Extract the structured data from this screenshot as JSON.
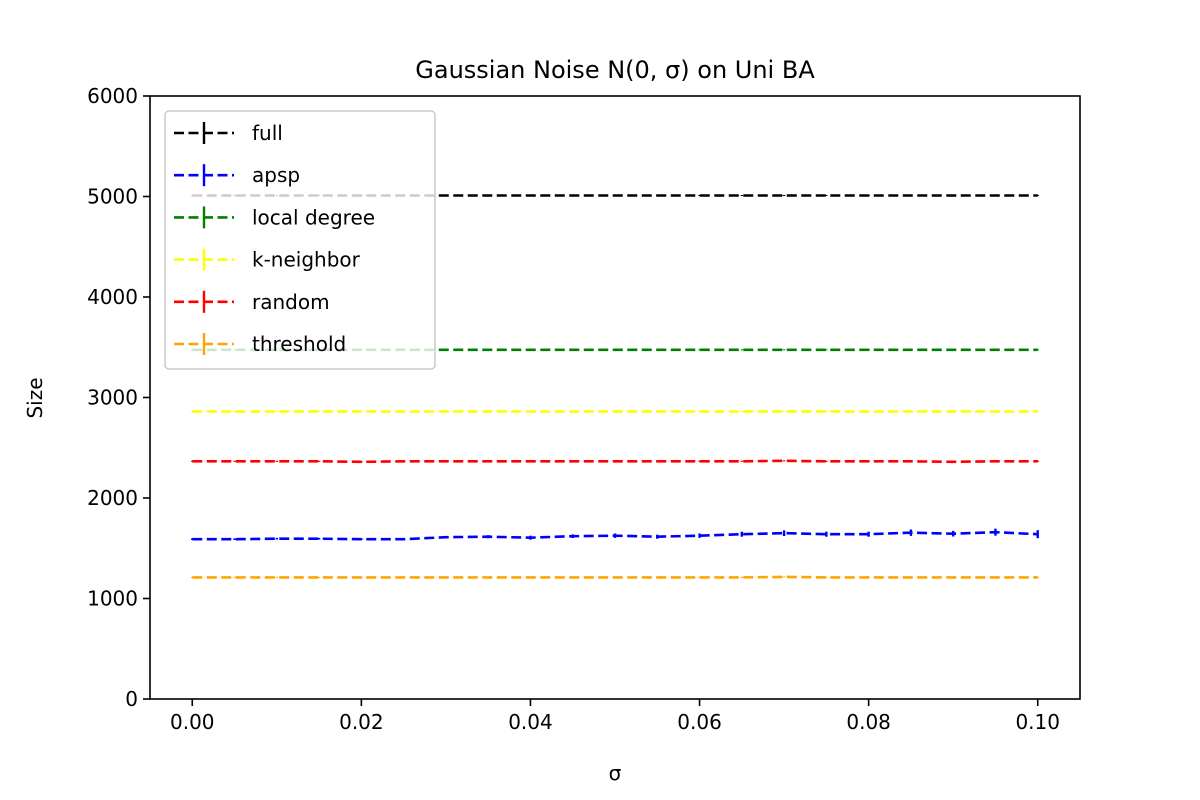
{
  "chart_data": {
    "type": "line",
    "title": "Gaussian Noise N(0, σ) on Uni BA",
    "xlabel": "σ",
    "ylabel": "Size",
    "xlim": [
      -0.005,
      0.105
    ],
    "ylim": [
      0,
      6000
    ],
    "xticks": [
      "0.00",
      "0.02",
      "0.04",
      "0.06",
      "0.08",
      "0.10"
    ],
    "yticks": [
      "0",
      "1000",
      "2000",
      "3000",
      "4000",
      "5000",
      "6000"
    ],
    "grid": false,
    "legend_position": "top-left",
    "x": [
      0.0,
      0.005,
      0.01,
      0.015,
      0.02,
      0.025,
      0.03,
      0.035,
      0.04,
      0.045,
      0.05,
      0.055,
      0.06,
      0.065,
      0.07,
      0.075,
      0.08,
      0.085,
      0.09,
      0.095,
      0.1
    ],
    "series": [
      {
        "name": "full",
        "color": "#000000",
        "values": [
          5010,
          5010,
          5010,
          5010,
          5010,
          5010,
          5010,
          5010,
          5010,
          5010,
          5010,
          5010,
          5010,
          5010,
          5010,
          5010,
          5010,
          5010,
          5010,
          5010,
          5010
        ],
        "errors": [
          5,
          5,
          5,
          5,
          5,
          5,
          5,
          5,
          5,
          5,
          5,
          5,
          5,
          5,
          5,
          5,
          5,
          5,
          5,
          5,
          5
        ]
      },
      {
        "name": "apsp",
        "color": "#0000ff",
        "values": [
          1590,
          1590,
          1595,
          1595,
          1590,
          1590,
          1610,
          1615,
          1605,
          1620,
          1625,
          1615,
          1625,
          1640,
          1650,
          1640,
          1640,
          1655,
          1645,
          1660,
          1640
        ],
        "errors": [
          8,
          8,
          8,
          8,
          8,
          10,
          12,
          15,
          20,
          18,
          22,
          20,
          22,
          25,
          28,
          25,
          25,
          32,
          28,
          35,
          40
        ]
      },
      {
        "name": "local degree",
        "color": "#008000",
        "values": [
          3475,
          3475,
          3475,
          3475,
          3475,
          3475,
          3475,
          3475,
          3475,
          3475,
          3475,
          3475,
          3475,
          3475,
          3475,
          3475,
          3475,
          3475,
          3475,
          3475,
          3475
        ],
        "errors": [
          5,
          5,
          5,
          5,
          5,
          5,
          5,
          5,
          5,
          5,
          5,
          5,
          5,
          5,
          5,
          5,
          5,
          5,
          5,
          5,
          5
        ]
      },
      {
        "name": "k-neighbor",
        "color": "#ffff00",
        "values": [
          2860,
          2860,
          2860,
          2860,
          2860,
          2860,
          2860,
          2860,
          2860,
          2860,
          2860,
          2860,
          2860,
          2860,
          2860,
          2860,
          2860,
          2860,
          2860,
          2860,
          2860
        ],
        "errors": [
          5,
          5,
          5,
          5,
          5,
          5,
          5,
          5,
          5,
          5,
          5,
          5,
          5,
          5,
          5,
          5,
          5,
          5,
          5,
          5,
          5
        ]
      },
      {
        "name": "random",
        "color": "#ff0000",
        "values": [
          2365,
          2365,
          2365,
          2365,
          2360,
          2365,
          2365,
          2365,
          2365,
          2365,
          2365,
          2365,
          2365,
          2365,
          2370,
          2365,
          2365,
          2365,
          2360,
          2365,
          2365
        ],
        "errors": [
          6,
          6,
          6,
          6,
          6,
          6,
          6,
          6,
          6,
          6,
          6,
          6,
          6,
          6,
          6,
          6,
          6,
          6,
          6,
          6,
          6
        ]
      },
      {
        "name": "threshold",
        "color": "#ffa500",
        "values": [
          1210,
          1210,
          1210,
          1210,
          1210,
          1210,
          1210,
          1210,
          1210,
          1210,
          1210,
          1210,
          1210,
          1210,
          1215,
          1210,
          1210,
          1210,
          1210,
          1210,
          1210
        ],
        "errors": [
          5,
          5,
          5,
          5,
          5,
          5,
          5,
          5,
          5,
          5,
          5,
          5,
          5,
          5,
          5,
          5,
          5,
          5,
          5,
          5,
          5
        ]
      }
    ]
  }
}
